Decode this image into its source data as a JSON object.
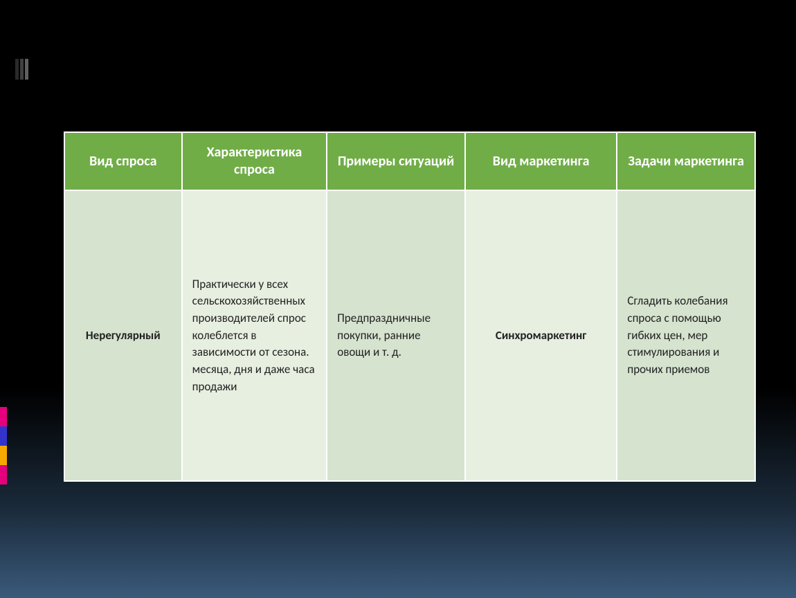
{
  "slide": {
    "background_gradient_top": "#000000",
    "background_gradient_bottom": "#3a5a7a"
  },
  "decorations": {
    "top_bars": [
      "#2a2a2a",
      "#404040",
      "#606060"
    ],
    "left_bars": [
      "#e6007e",
      "#3333cc",
      "#f6a800",
      "#e6007e"
    ]
  },
  "table": {
    "header_bg": "#70ad47",
    "header_text_color": "#ffffff",
    "cell_border_color": "#ffffff",
    "alt_colors": {
      "light": "#e7efe0",
      "dark": "#d5e3cf"
    },
    "columns": [
      {
        "label": "Вид спроса",
        "width": "17%"
      },
      {
        "label": "Характеристика спроса",
        "width": "21%"
      },
      {
        "label": "Примеры ситуаций",
        "width": "20%"
      },
      {
        "label": "Вид маркетинга",
        "width": "22%"
      },
      {
        "label": "Задачи маркетинга",
        "width": "20%"
      }
    ],
    "row": {
      "demand_type": "Нерегулярный",
      "characteristic": "Практически у всех сельскохозяйственных производителей спрос колеблется в зависимости от сезона. месяца, дня и даже часа продажи",
      "examples": "Предпраздничные покупки,  ранние овощи и т. д.",
      "marketing_type": "Синхромаркетинг",
      "tasks": "Сгладить колебания спроса с помощью гибких цен, мер стимулирования и прочих приемов"
    }
  }
}
